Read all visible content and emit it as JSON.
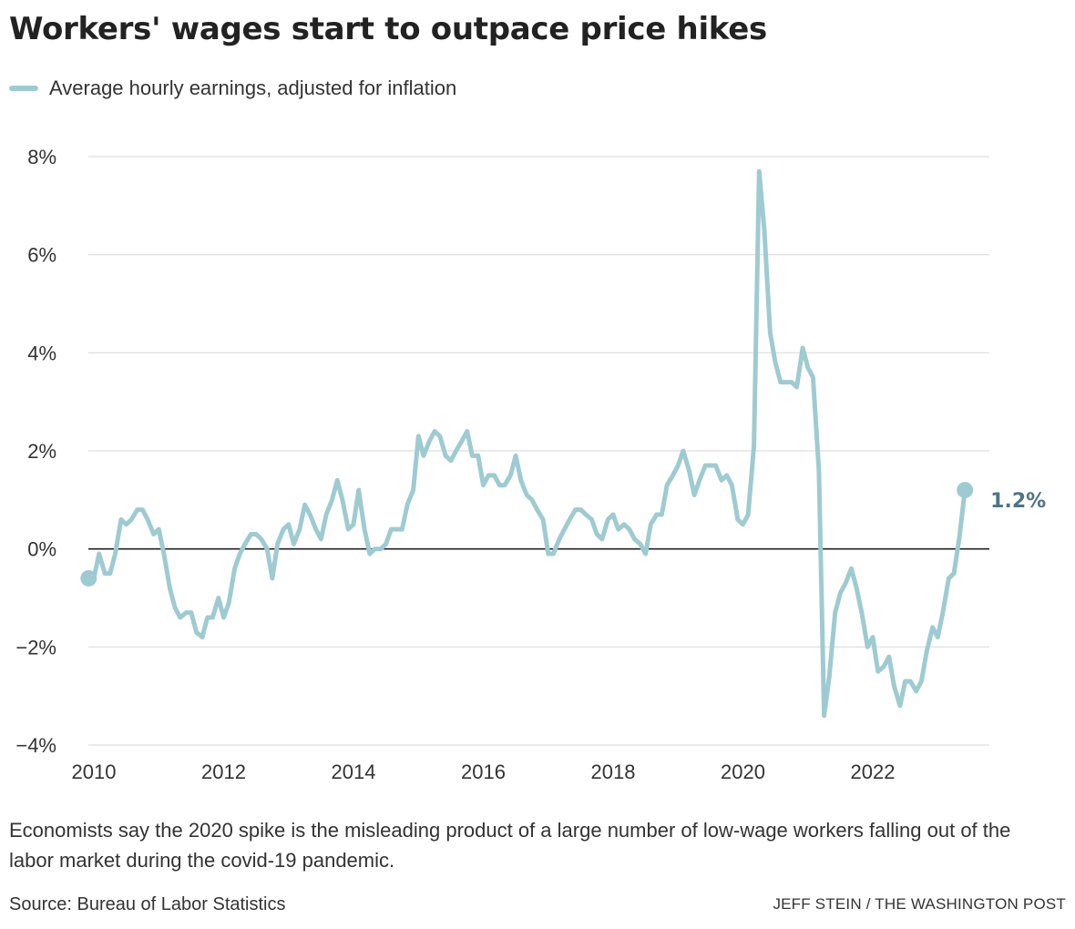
{
  "header": {
    "title": "Workers' wages start to outpace price hikes"
  },
  "footer": {
    "note": "Economists say the 2020 spike is the misleading product of a large number of low-wage workers falling out of the labor market during the covid-19 pandemic.",
    "source": "Source: Bureau of Labor Statistics",
    "credit": "JEFF STEIN / THE WASHINGTON POST"
  },
  "colors": {
    "series": "#9ecbd1",
    "end_label": "#4e7484",
    "grid": "#dddddd",
    "zero_line": "#222222"
  },
  "chart_data": {
    "type": "line",
    "title": "Workers' wages start to outpace price hikes",
    "xlabel": "",
    "ylabel": "",
    "xlim": [
      2010,
      2023.8
    ],
    "ylim": [
      -4,
      8
    ],
    "x_ticks": [
      2010,
      2012,
      2014,
      2016,
      2018,
      2020,
      2022
    ],
    "x_tick_labels": [
      "2010",
      "2012",
      "2014",
      "2016",
      "2018",
      "2020",
      "2022"
    ],
    "y_ticks": [
      -4,
      -2,
      0,
      2,
      4,
      6,
      8
    ],
    "y_tick_labels": [
      "−4%",
      "−2%",
      "0%",
      "2%",
      "4%",
      "6%",
      "8%"
    ],
    "grid": "horizontal",
    "legend_position": "top-left",
    "end_label": "1.2%",
    "series": [
      {
        "name": "Average hourly earnings, adjusted for inflation",
        "x": [
          2009.92,
          2010.0,
          2010.08,
          2010.17,
          2010.25,
          2010.33,
          2010.42,
          2010.5,
          2010.58,
          2010.67,
          2010.75,
          2010.83,
          2010.92,
          2011.0,
          2011.08,
          2011.17,
          2011.25,
          2011.33,
          2011.42,
          2011.5,
          2011.58,
          2011.67,
          2011.75,
          2011.83,
          2011.92,
          2012.0,
          2012.08,
          2012.17,
          2012.25,
          2012.33,
          2012.42,
          2012.5,
          2012.58,
          2012.67,
          2012.75,
          2012.83,
          2012.92,
          2013.0,
          2013.08,
          2013.17,
          2013.25,
          2013.33,
          2013.42,
          2013.5,
          2013.58,
          2013.67,
          2013.75,
          2013.83,
          2013.92,
          2014.0,
          2014.08,
          2014.17,
          2014.25,
          2014.33,
          2014.42,
          2014.5,
          2014.58,
          2014.67,
          2014.75,
          2014.83,
          2014.92,
          2015.0,
          2015.08,
          2015.17,
          2015.25,
          2015.33,
          2015.42,
          2015.5,
          2015.58,
          2015.67,
          2015.75,
          2015.83,
          2015.92,
          2016.0,
          2016.08,
          2016.17,
          2016.25,
          2016.33,
          2016.42,
          2016.5,
          2016.58,
          2016.67,
          2016.75,
          2016.83,
          2016.92,
          2017.0,
          2017.08,
          2017.17,
          2017.25,
          2017.33,
          2017.42,
          2017.5,
          2017.58,
          2017.67,
          2017.75,
          2017.83,
          2017.92,
          2018.0,
          2018.08,
          2018.17,
          2018.25,
          2018.33,
          2018.42,
          2018.5,
          2018.58,
          2018.67,
          2018.75,
          2018.83,
          2018.92,
          2019.0,
          2019.08,
          2019.17,
          2019.25,
          2019.33,
          2019.42,
          2019.5,
          2019.58,
          2019.67,
          2019.75,
          2019.83,
          2019.92,
          2020.0,
          2020.08,
          2020.17,
          2020.25,
          2020.33,
          2020.42,
          2020.5,
          2020.58,
          2020.67,
          2020.75,
          2020.83,
          2020.92,
          2021.0,
          2021.08,
          2021.17,
          2021.25,
          2021.33,
          2021.42,
          2021.5,
          2021.58,
          2021.67,
          2021.75,
          2021.83,
          2021.92,
          2022.0,
          2022.08,
          2022.17,
          2022.25,
          2022.33,
          2022.42,
          2022.5,
          2022.58,
          2022.67,
          2022.75,
          2022.83,
          2022.92,
          2023.0,
          2023.08,
          2023.17,
          2023.25,
          2023.33,
          2023.42
        ],
        "values": [
          -0.6,
          -0.6,
          -0.1,
          -0.5,
          -0.5,
          -0.1,
          0.6,
          0.5,
          0.6,
          0.8,
          0.8,
          0.6,
          0.3,
          0.4,
          -0.1,
          -0.8,
          -1.2,
          -1.4,
          -1.3,
          -1.3,
          -1.7,
          -1.8,
          -1.4,
          -1.4,
          -1.0,
          -1.4,
          -1.1,
          -0.4,
          -0.1,
          0.1,
          0.3,
          0.3,
          0.2,
          0.0,
          -0.6,
          0.1,
          0.4,
          0.5,
          0.1,
          0.4,
          0.9,
          0.7,
          0.4,
          0.2,
          0.7,
          1.0,
          1.4,
          1.0,
          0.4,
          0.5,
          1.2,
          0.4,
          -0.1,
          0.0,
          0.0,
          0.1,
          0.4,
          0.4,
          0.4,
          0.9,
          1.2,
          2.3,
          1.9,
          2.2,
          2.4,
          2.3,
          1.9,
          1.8,
          2.0,
          2.2,
          2.4,
          1.9,
          1.9,
          1.3,
          1.5,
          1.5,
          1.3,
          1.3,
          1.5,
          1.9,
          1.4,
          1.1,
          1.0,
          0.8,
          0.6,
          -0.1,
          -0.1,
          0.2,
          0.4,
          0.6,
          0.8,
          0.8,
          0.7,
          0.6,
          0.3,
          0.2,
          0.6,
          0.7,
          0.4,
          0.5,
          0.4,
          0.2,
          0.1,
          -0.1,
          0.5,
          0.7,
          0.7,
          1.3,
          1.5,
          1.7,
          2.0,
          1.6,
          1.1,
          1.4,
          1.7,
          1.7,
          1.7,
          1.4,
          1.5,
          1.3,
          0.6,
          0.5,
          0.7,
          2.1,
          7.7,
          6.5,
          4.4,
          3.8,
          3.4,
          3.4,
          3.4,
          3.3,
          4.1,
          3.7,
          3.5,
          1.6,
          -3.4,
          -2.6,
          -1.3,
          -0.9,
          -0.7,
          -0.4,
          -0.8,
          -1.3,
          -2.0,
          -1.8,
          -2.5,
          -2.4,
          -2.2,
          -2.8,
          -3.2,
          -2.7,
          -2.7,
          -2.9,
          -2.7,
          -2.1,
          -1.6,
          -1.8,
          -1.3,
          -0.6,
          -0.5,
          0.2,
          1.2
        ]
      }
    ]
  }
}
